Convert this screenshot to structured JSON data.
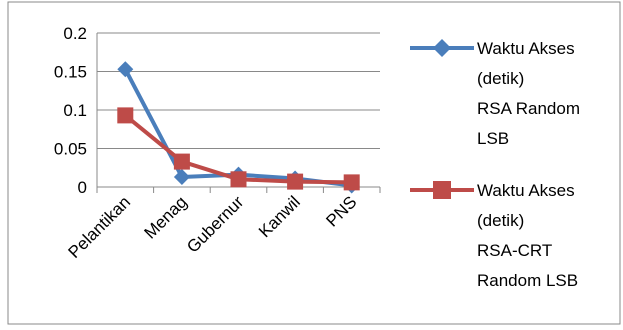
{
  "chart_data": {
    "type": "line",
    "categories": [
      "Pelantikan",
      "Menag",
      "Gubernur",
      "Kanwil",
      "PNS"
    ],
    "series": [
      {
        "name_lines": [
          "Waktu Akses",
          "(detik)",
          "RSA Random",
          "LSB"
        ],
        "values": [
          0.153,
          0.013,
          0.016,
          0.011,
          0.002
        ],
        "color": "#4a7ebb",
        "marker": "diamond"
      },
      {
        "name_lines": [
          "Waktu Akses",
          "(detik)",
          "RSA-CRT",
          "Random LSB"
        ],
        "values": [
          0.093,
          0.033,
          0.01,
          0.007,
          0.006
        ],
        "color": "#be4b48",
        "marker": "square"
      }
    ],
    "y_ticks": [
      "0",
      "0.05",
      "0.1",
      "0.15",
      "0.2"
    ],
    "ylim": [
      0,
      0.2
    ],
    "grid": true,
    "legend_position": "right"
  }
}
